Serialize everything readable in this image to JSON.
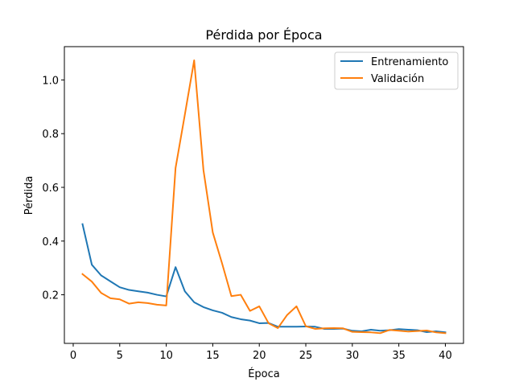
{
  "chart_data": {
    "type": "line",
    "title": "Pérdida por Época",
    "xlabel": "Época",
    "ylabel": "Pérdida",
    "xlim": [
      -0.95,
      41.95
    ],
    "ylim": [
      0.019,
      1.124
    ],
    "xticks": [
      0,
      5,
      10,
      15,
      20,
      25,
      30,
      35,
      40
    ],
    "yticks": [
      0.2,
      0.4,
      0.6,
      0.8,
      1.0
    ],
    "ytick_labels": [
      "0.2",
      "0.4",
      "0.6",
      "0.8",
      "1.0"
    ],
    "grid": false,
    "legend_position": "top-right",
    "x": [
      1,
      2,
      3,
      4,
      5,
      6,
      7,
      8,
      9,
      10,
      11,
      12,
      13,
      14,
      15,
      16,
      17,
      18,
      19,
      20,
      21,
      22,
      23,
      24,
      25,
      26,
      27,
      28,
      29,
      30,
      31,
      32,
      33,
      34,
      35,
      36,
      37,
      38,
      39,
      40
    ],
    "series": [
      {
        "name": "Entrenamiento",
        "color": "#1f77b4",
        "values": [
          0.463,
          0.312,
          0.272,
          0.25,
          0.228,
          0.218,
          0.213,
          0.208,
          0.2,
          0.194,
          0.303,
          0.213,
          0.172,
          0.154,
          0.142,
          0.133,
          0.117,
          0.109,
          0.104,
          0.094,
          0.095,
          0.081,
          0.081,
          0.081,
          0.082,
          0.081,
          0.073,
          0.073,
          0.074,
          0.066,
          0.064,
          0.07,
          0.066,
          0.068,
          0.072,
          0.07,
          0.068,
          0.061,
          0.064,
          0.06
        ]
      },
      {
        "name": "Validación",
        "color": "#ff7f0e",
        "values": [
          0.277,
          0.249,
          0.207,
          0.187,
          0.183,
          0.167,
          0.172,
          0.169,
          0.163,
          0.16,
          0.672,
          0.871,
          1.073,
          0.664,
          0.432,
          0.317,
          0.195,
          0.2,
          0.14,
          0.157,
          0.094,
          0.076,
          0.125,
          0.157,
          0.083,
          0.073,
          0.075,
          0.076,
          0.075,
          0.062,
          0.061,
          0.06,
          0.057,
          0.069,
          0.066,
          0.063,
          0.065,
          0.067,
          0.06,
          0.057
        ]
      }
    ]
  }
}
